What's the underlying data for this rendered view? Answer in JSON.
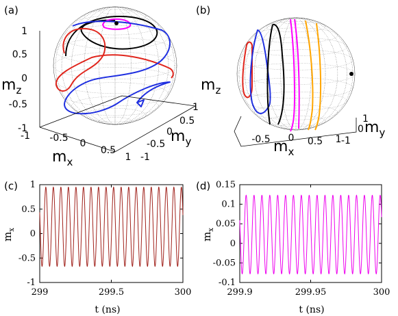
{
  "chart_data": [
    {
      "panel": "(a)",
      "type": "scatter",
      "title": "",
      "axes": {
        "x": {
          "label": "m",
          "sub": "x",
          "ticks": [
            "-1",
            "-0.5",
            "0",
            "0.5",
            "1"
          ]
        },
        "y": {
          "label": "m",
          "sub": "y",
          "ticks": [
            "-1",
            "-0.5",
            "0",
            "0.5",
            "1"
          ]
        },
        "z": {
          "label": "m",
          "sub": "z",
          "ticks": [
            "-1",
            "-0.5",
            "0",
            "0.5",
            "1"
          ]
        }
      },
      "unit_sphere": true,
      "series": [
        {
          "color": "#000000"
        },
        {
          "color": "#ff00ff"
        },
        {
          "color": "#e0251c"
        },
        {
          "color": "#1f2fe0"
        }
      ],
      "marker": "black dot near the top of the sphere"
    },
    {
      "panel": "(b)",
      "type": "scatter",
      "title": "",
      "axes": {
        "x": {
          "label": "m",
          "sub": "x",
          "ticks": [
            "-0.5",
            "0",
            "0.5",
            "1"
          ]
        },
        "y": {
          "label": "m",
          "sub": "y",
          "ticks": [
            "1",
            "0",
            "-1"
          ]
        },
        "z": {
          "label": "m",
          "sub": "z",
          "ticks": []
        }
      },
      "unit_sphere": true,
      "series": [
        {
          "color": "#e0251c"
        },
        {
          "color": "#1f2fe0"
        },
        {
          "color": "#000000"
        },
        {
          "color": "#ff00ff"
        },
        {
          "color": "#ffa500"
        }
      ],
      "marker": "black dot on the right side of the sphere"
    },
    {
      "panel": "(c)",
      "type": "line",
      "title": "",
      "xlabel": "t (ns)",
      "ylabel": "m",
      "ylabel_sub": "x",
      "xlim": [
        299,
        300
      ],
      "ylim": [
        -1,
        1
      ],
      "xticks": [
        "299",
        "299.5",
        "300"
      ],
      "xtick_values": [
        299,
        299.5,
        300
      ],
      "yticks": [
        "-1",
        "-0.5",
        "0",
        "0.5",
        "1"
      ],
      "ytick_values": [
        -1,
        -0.5,
        0,
        0.5,
        1
      ],
      "series": [
        {
          "color": "#a0201a",
          "x0": 299,
          "period": 0.0526,
          "max": 0.95,
          "min": -0.67
        }
      ]
    },
    {
      "panel": "(d)",
      "type": "line",
      "title": "",
      "xlabel": "t (ns)",
      "ylabel": "m",
      "ylabel_sub": "x",
      "xlim": [
        299.9,
        300
      ],
      "ylim": [
        -0.1,
        0.15
      ],
      "xticks": [
        "299.9",
        "299.95",
        "300"
      ],
      "xtick_values": [
        299.9,
        299.95,
        300
      ],
      "yticks": [
        "-0.1",
        "-0.05",
        "0",
        "0.05",
        "0.1",
        "0.15"
      ],
      "ytick_values": [
        -0.1,
        -0.05,
        0,
        0.05,
        0.1,
        0.15
      ],
      "series": [
        {
          "color": "#ee00ee",
          "x0": 299.9,
          "period": 0.00556,
          "max": 0.123,
          "min": -0.078
        }
      ]
    }
  ]
}
